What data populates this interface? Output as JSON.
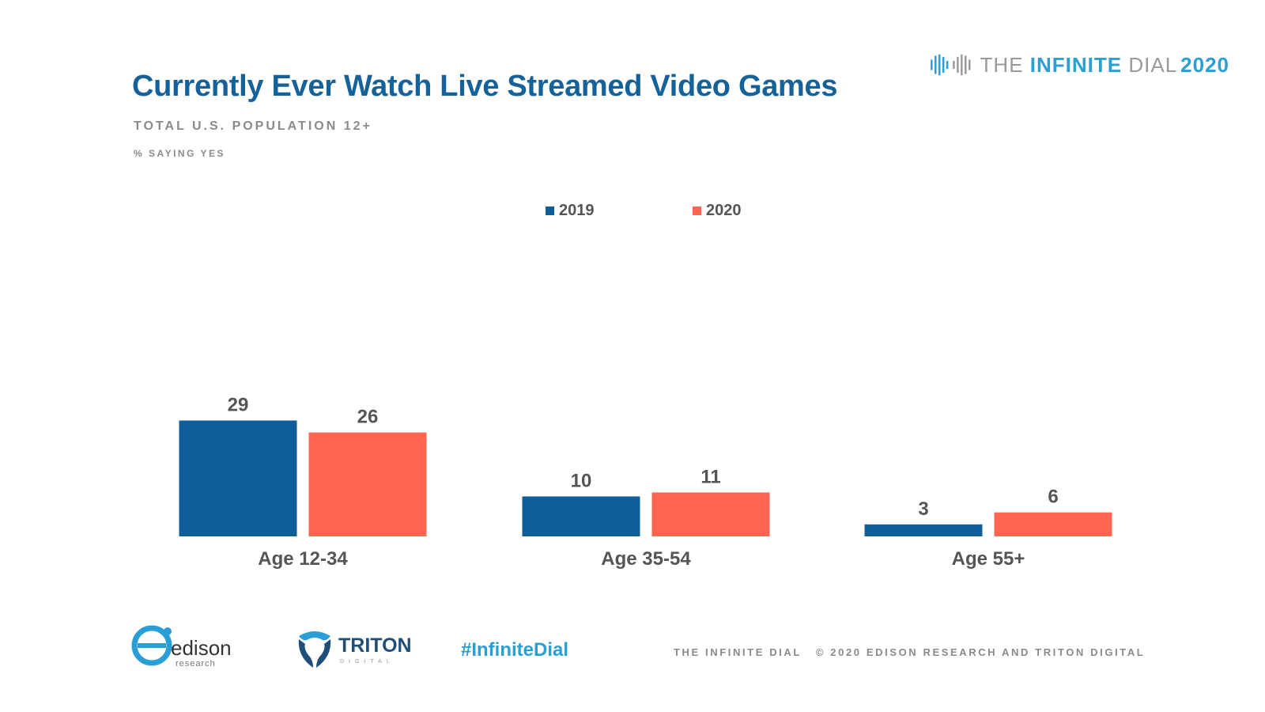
{
  "brand": {
    "prefix": "THE ",
    "strong": "INFINITE",
    "suffix": " DIAL",
    "year": "2020"
  },
  "header": {
    "title": "Currently Ever Watch Live Streamed Video Games",
    "subtitle": "TOTAL U.S. POPULATION 12+",
    "note": "% SAYING YES"
  },
  "colors": {
    "series_2019": "#0f5e99",
    "series_2020": "#ff6650",
    "title": "#15629a",
    "accent": "#2a9fd6"
  },
  "chart_data": {
    "type": "bar",
    "title": "Currently Ever Watch Live Streamed Video Games",
    "xlabel": "",
    "ylabel": "% saying yes",
    "ylim": [
      0,
      30
    ],
    "categories": [
      "Age 12-34",
      "Age 35-54",
      "Age 55+"
    ],
    "series": [
      {
        "name": "2019",
        "values": [
          29,
          10,
          3
        ]
      },
      {
        "name": "2020",
        "values": [
          26,
          11,
          6
        ]
      }
    ],
    "legend": "top-center",
    "grid": false
  },
  "footer": {
    "edison_name": "edison",
    "edison_sub": "research",
    "triton_name": "TRITON",
    "triton_sub": "DIGITAL",
    "hashtag": "#InfiniteDial",
    "copyright_left": "THE INFINITE DIAL",
    "copyright_right": "© 2020 EDISON RESEARCH AND TRITON DIGITAL"
  }
}
